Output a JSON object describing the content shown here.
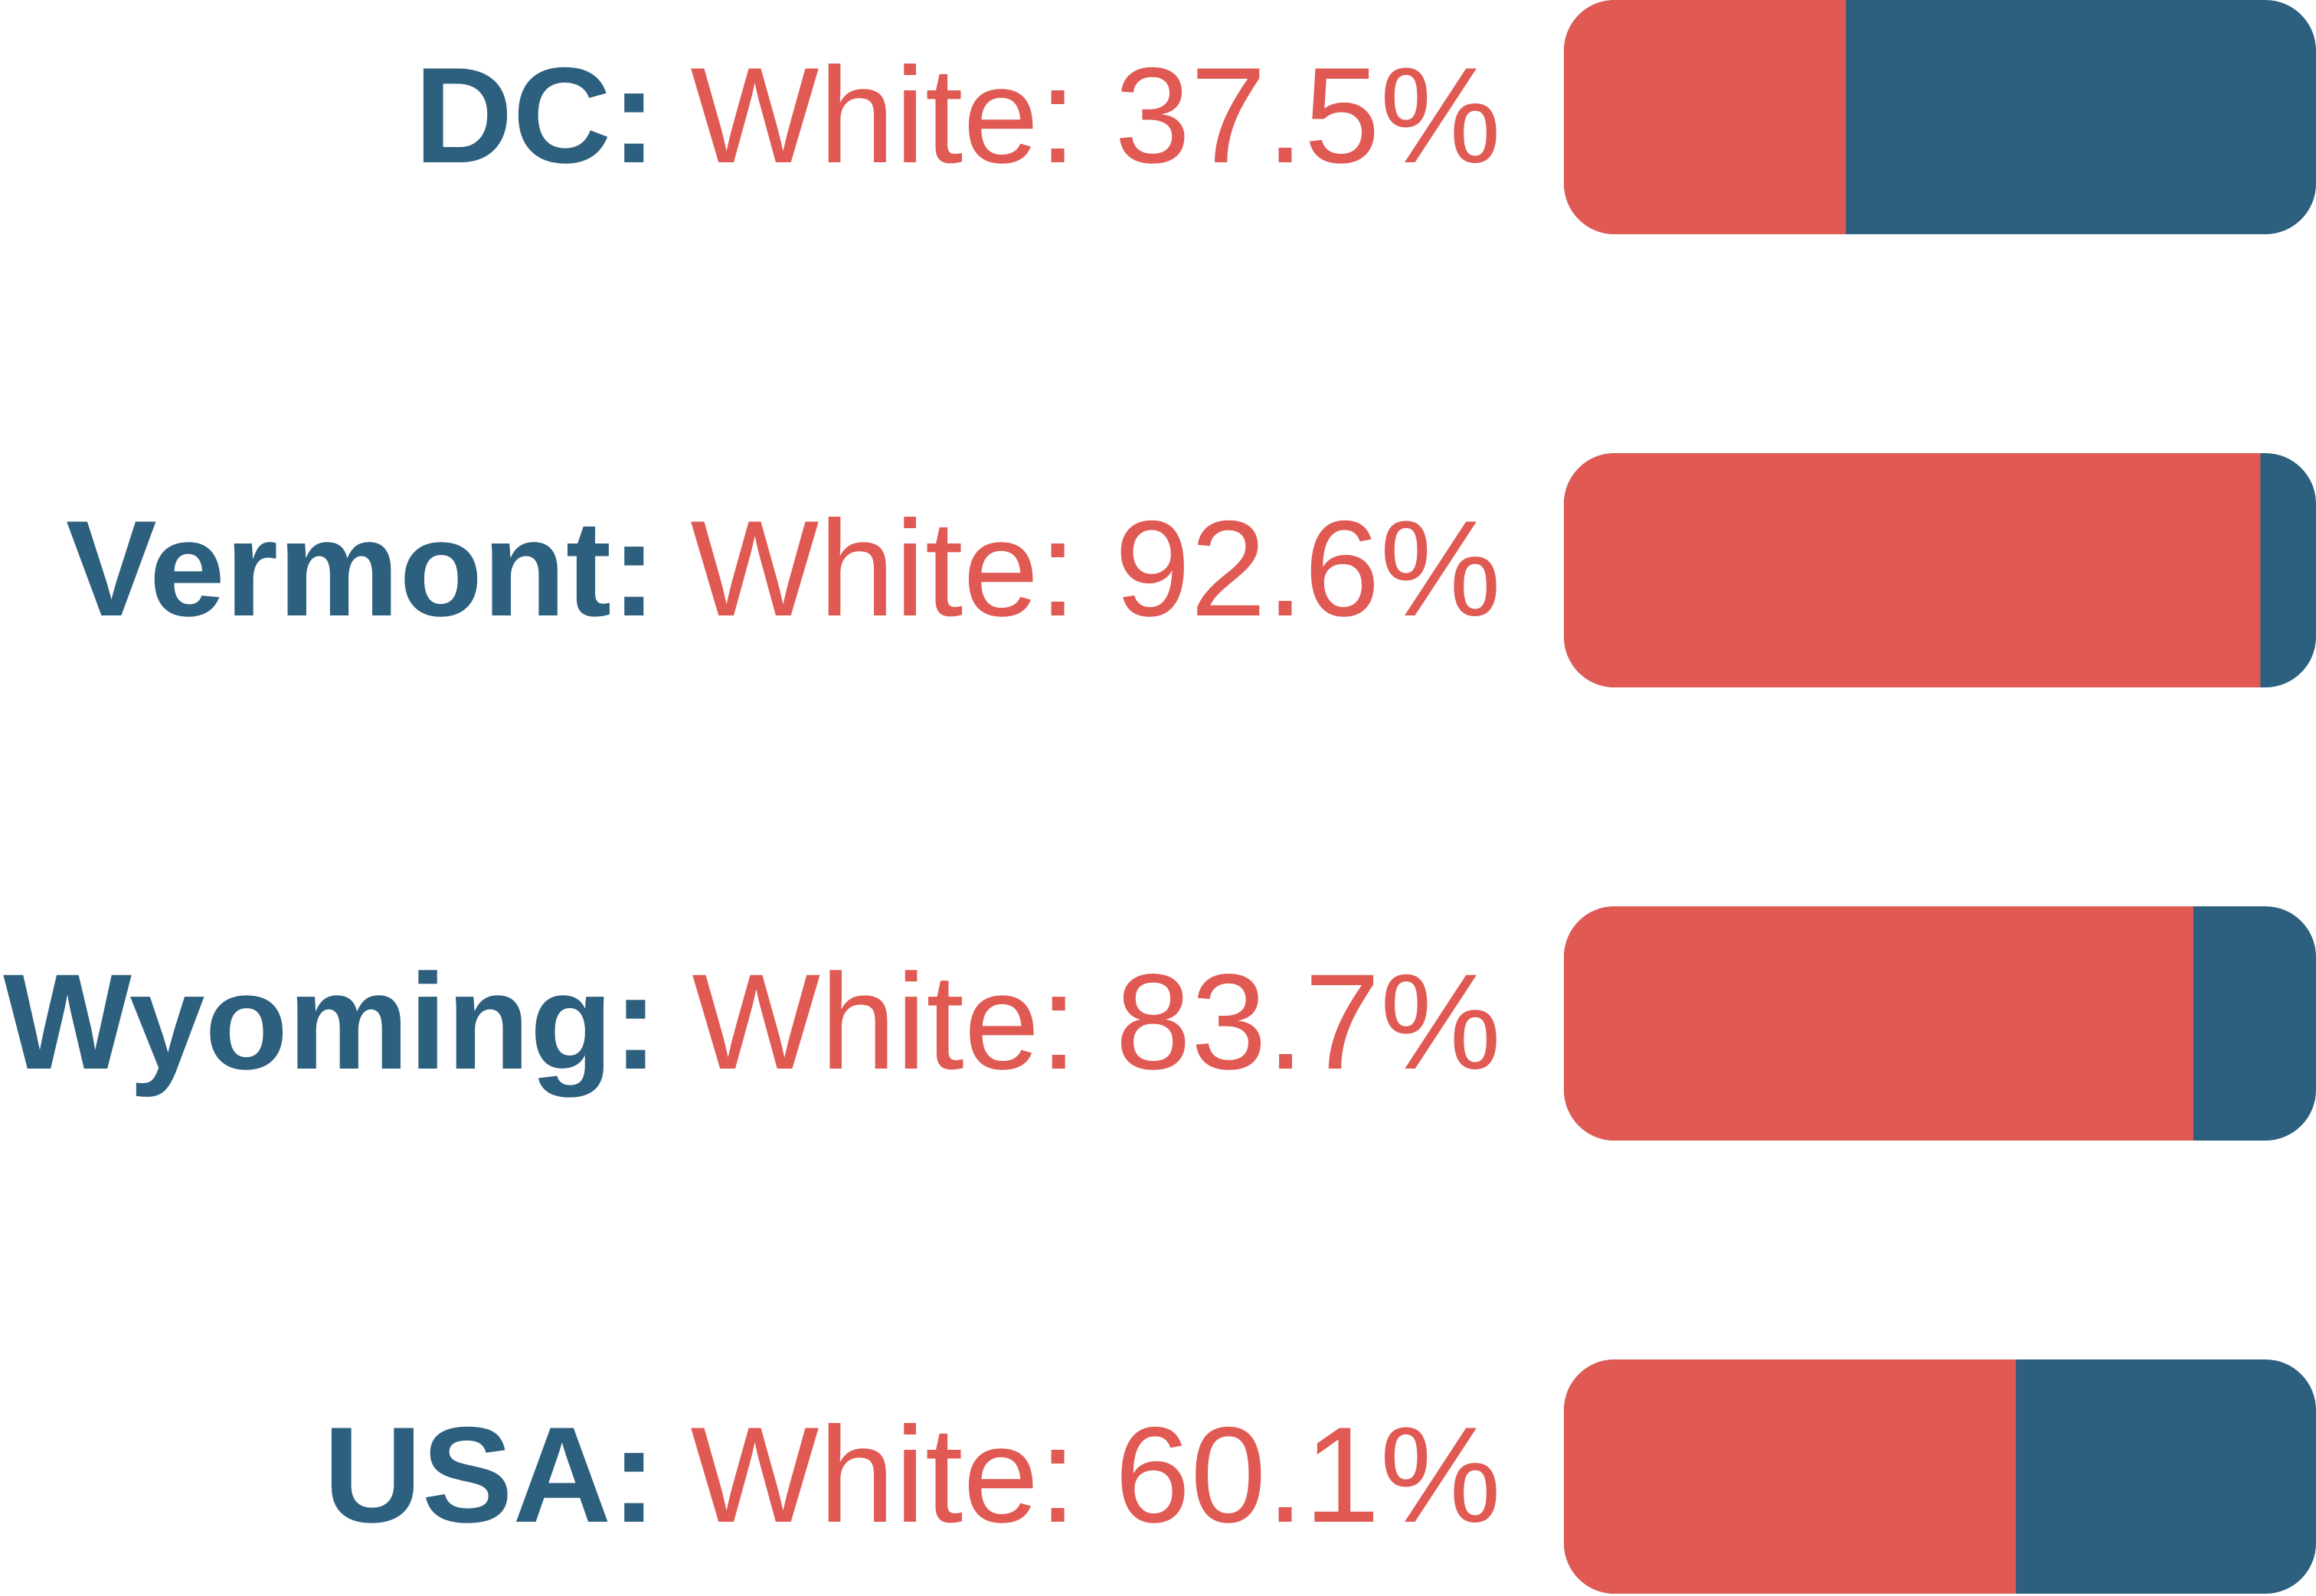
{
  "colors": {
    "white_share": "#e05a53",
    "other_share": "#2d5f7e",
    "state_text": "#2d5f7e",
    "value_text": "#e05a53"
  },
  "chart_data": {
    "type": "bar",
    "orientation": "horizontal-stacked-100",
    "categories": [
      "DC",
      "Vermont",
      "Wyoming",
      "USA"
    ],
    "series": [
      {
        "name": "White",
        "values": [
          37.5,
          92.6,
          83.7,
          60.1
        ]
      }
    ],
    "xlim": [
      0,
      100
    ],
    "grid": false,
    "legend": "none"
  },
  "rows": [
    {
      "state": "DC:",
      "value_text": "White: 37.5%"
    },
    {
      "state": "Vermont:",
      "value_text": "White: 92.6%"
    },
    {
      "state": "Wyoming:",
      "value_text": "White: 83.7%"
    },
    {
      "state": "USA:",
      "value_text": "White: 60.1%"
    }
  ]
}
